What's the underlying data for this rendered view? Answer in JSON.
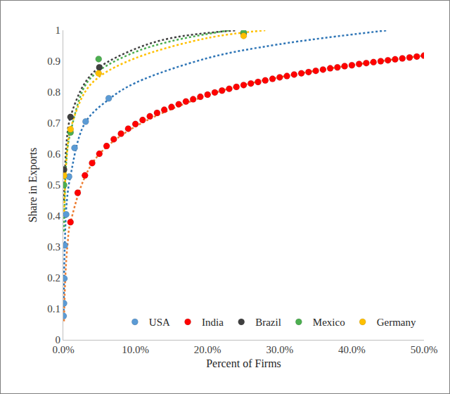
{
  "chart_data": {
    "type": "scatter",
    "x_label": "Percent of Firms",
    "y_label": "Share in Exports",
    "xlim": [
      0,
      50
    ],
    "xticks": [
      {
        "value": 0,
        "label": "0.0%"
      },
      {
        "value": 10,
        "label": "10.0%"
      },
      {
        "value": 20,
        "label": "20.0%"
      },
      {
        "value": 30,
        "label": "30.0%"
      },
      {
        "value": 40,
        "label": "40.0%"
      },
      {
        "value": 50,
        "label": "50.0%"
      }
    ],
    "ylim": [
      0,
      1
    ],
    "yticks": [
      0,
      0.1,
      0.2,
      0.3,
      0.4,
      0.5,
      0.6,
      0.7,
      0.8,
      0.9,
      1
    ],
    "grid": false,
    "legend": "bottom right",
    "marker": "circle",
    "series": [
      {
        "name": "USA",
        "color": "#5b9bd5",
        "x": [
          0.05,
          0.1,
          0.15,
          0.2,
          0.4,
          0.8,
          1.56,
          3.1,
          6.3
        ],
        "values": [
          0.077,
          0.118,
          0.198,
          0.305,
          0.405,
          0.527,
          0.62,
          0.705,
          0.78
        ],
        "trend": {
          "color": "#2e75b6",
          "line_style": "dot",
          "x": [
            0.05,
            0.2,
            0.5,
            1,
            3,
            6.5,
            10,
            20,
            30,
            45
          ],
          "values": [
            0.08,
            0.3,
            0.45,
            0.53,
            0.7,
            0.78,
            0.83,
            0.91,
            0.955,
            1.0
          ]
        }
      },
      {
        "name": "India",
        "color": "#ff0000",
        "x": [
          1,
          2,
          3,
          4,
          5,
          6,
          7,
          8,
          9,
          10,
          11,
          12,
          13,
          14,
          15,
          16,
          17,
          18,
          19,
          20,
          21,
          22,
          23,
          24,
          25,
          26,
          27,
          28,
          29,
          30,
          31,
          32,
          33,
          34,
          35,
          36,
          37,
          38,
          39,
          40,
          41,
          42,
          43,
          44,
          45,
          46,
          47,
          48,
          49,
          50
        ],
        "values": [
          0.38,
          0.475,
          0.531,
          0.571,
          0.601,
          0.626,
          0.648,
          0.666,
          0.682,
          0.697,
          0.71,
          0.722,
          0.733,
          0.743,
          0.752,
          0.761,
          0.77,
          0.777,
          0.785,
          0.792,
          0.799,
          0.805,
          0.811,
          0.817,
          0.823,
          0.828,
          0.833,
          0.838,
          0.843,
          0.848,
          0.852,
          0.857,
          0.861,
          0.865,
          0.869,
          0.873,
          0.877,
          0.88,
          0.884,
          0.887,
          0.891,
          0.894,
          0.897,
          0.9,
          0.903,
          0.906,
          0.909,
          0.912,
          0.915,
          0.918
        ],
        "trend": {
          "color": "#ed7d31",
          "line_style": "dot",
          "x": [
            0.1,
            0.3,
            0.6,
            1,
            5,
            20,
            50
          ],
          "values": [
            0.06,
            0.21,
            0.31,
            0.38,
            0.6,
            0.79,
            0.918
          ]
        }
      },
      {
        "name": "Brazil",
        "color": "#404040",
        "x": [
          0.1,
          1,
          5,
          25
        ],
        "values": [
          0.55,
          0.72,
          0.88,
          0.99
        ],
        "trend": {
          "color": "#404040",
          "line_style": "dot",
          "x": [
            0.1,
            0.5,
            1,
            3,
            5,
            10,
            15,
            24
          ],
          "values": [
            0.45,
            0.65,
            0.72,
            0.83,
            0.88,
            0.94,
            0.975,
            1.0
          ]
        }
      },
      {
        "name": "Mexico",
        "color": "#4caf50",
        "x": [
          0.1,
          1,
          4.9,
          25
        ],
        "values": [
          0.5,
          0.67,
          0.907,
          0.993
        ],
        "trend": {
          "color": "#4caf50",
          "line_style": "dot",
          "x": [
            0.1,
            0.5,
            1,
            3,
            5,
            10,
            15,
            23
          ],
          "values": [
            0.35,
            0.6,
            0.67,
            0.82,
            0.87,
            0.93,
            0.965,
            1.0
          ]
        }
      },
      {
        "name": "Germany",
        "color": "#ffc000",
        "x": [
          0.1,
          1,
          4.9,
          25
        ],
        "values": [
          0.53,
          0.68,
          0.861,
          0.982
        ],
        "trend": {
          "color": "#ffc000",
          "line_style": "dot",
          "x": [
            0.1,
            0.5,
            1,
            3,
            5,
            10,
            20,
            28
          ],
          "values": [
            0.4,
            0.6,
            0.68,
            0.8,
            0.85,
            0.91,
            0.975,
            1.0
          ]
        }
      }
    ]
  }
}
